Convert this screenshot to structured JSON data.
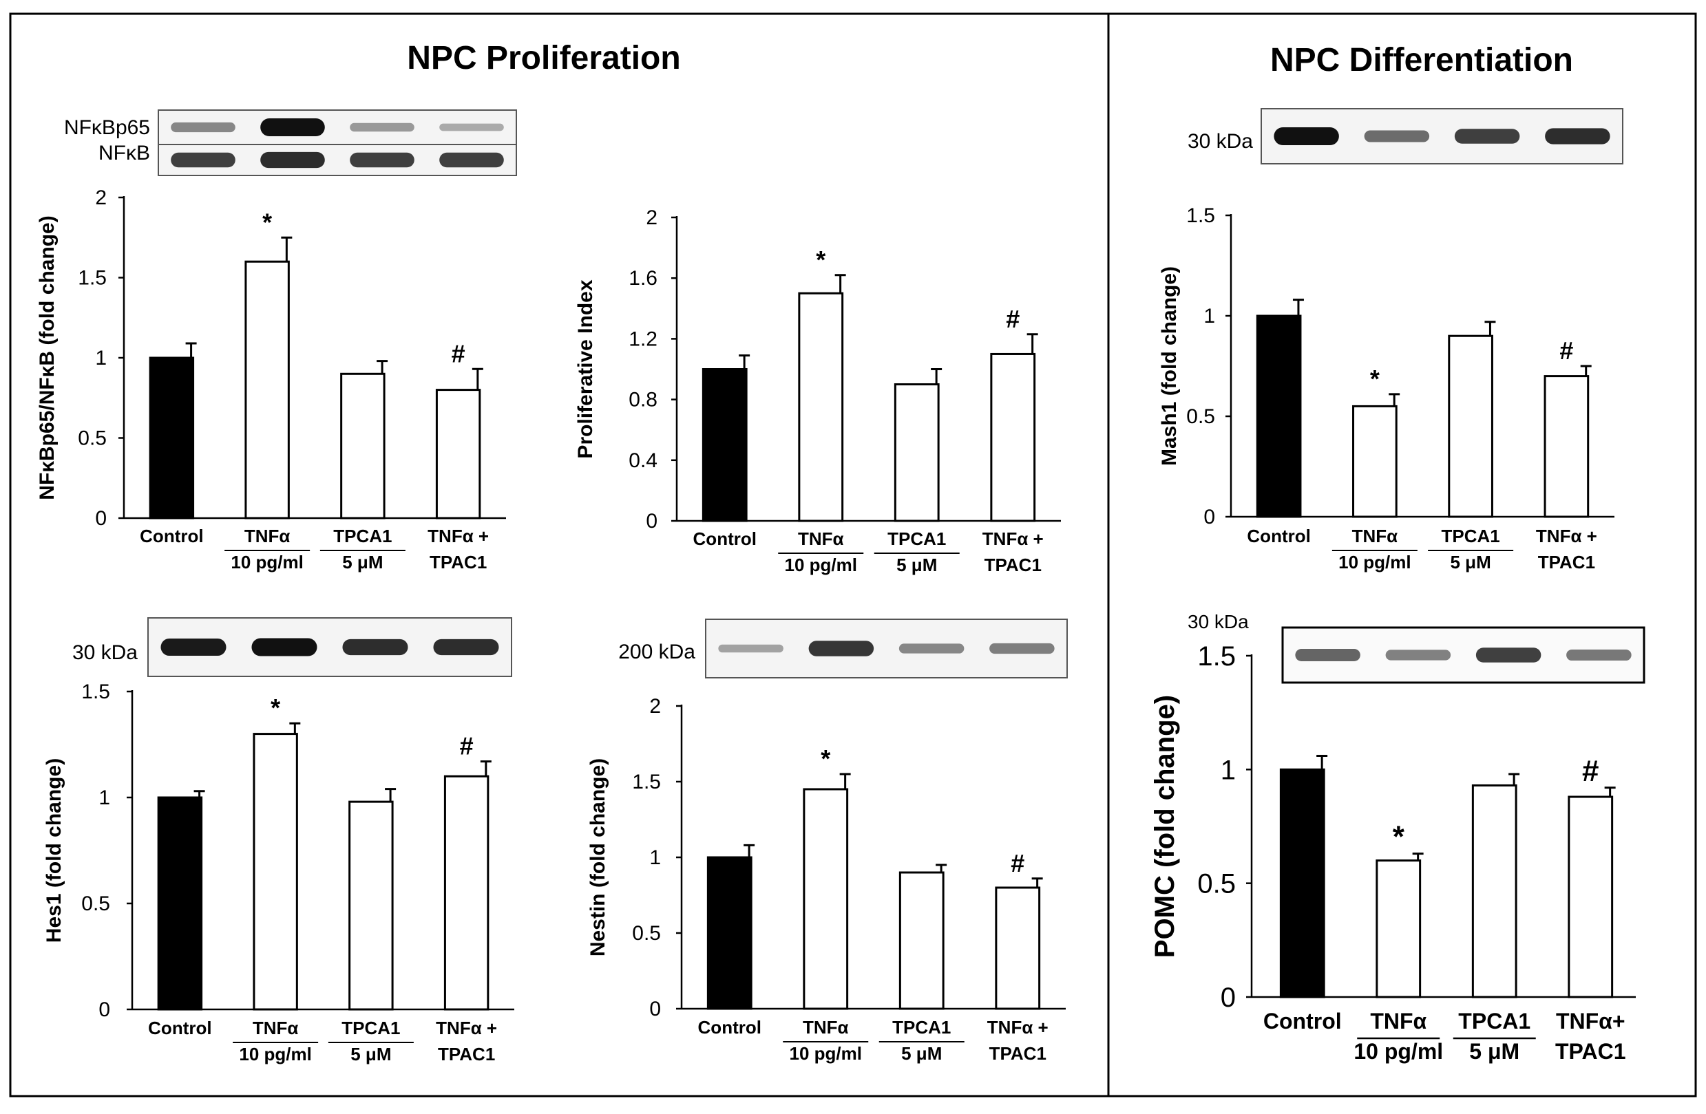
{
  "titles": {
    "proliferation": "NPC Proliferation",
    "differentiation": "NPC Differentiation"
  },
  "colors": {
    "control_bar": "#000000",
    "treatment_bar": "#ffffff"
  },
  "blots": [
    {
      "id": "nfkb",
      "labels": [
        "NFκBp65",
        "NFκB"
      ],
      "rows": [
        [
          0.35,
          1.0,
          0.25,
          0.15
        ],
        [
          0.75,
          0.85,
          0.75,
          0.75
        ]
      ]
    },
    {
      "id": "hes1",
      "labels": [
        "30 kDa"
      ],
      "rows": [
        [
          0.95,
          1.0,
          0.85,
          0.85
        ]
      ]
    },
    {
      "id": "nestin",
      "labels": [
        "200 kDa"
      ],
      "rows": [
        [
          0.2,
          0.8,
          0.35,
          0.4
        ]
      ]
    },
    {
      "id": "mash1",
      "labels": [
        "30 kDa"
      ],
      "rows": [
        [
          1.0,
          0.5,
          0.75,
          0.85
        ]
      ]
    },
    {
      "id": "pomc",
      "labels": [
        "30 kDa"
      ],
      "rows": [
        [
          0.55,
          0.4,
          0.75,
          0.45
        ]
      ]
    }
  ],
  "chart_data": [
    {
      "id": "nfkb",
      "type": "bar",
      "title": "",
      "ylabel": "NFκBp65/NFκB (fold change)",
      "xlabel": "",
      "ylim": [
        0,
        2
      ],
      "yticks": [
        "0",
        "0.5",
        "1",
        "1.5",
        "2"
      ],
      "ytick_values": [
        0,
        0.5,
        1,
        1.5,
        2
      ],
      "categories": [
        [
          "Control"
        ],
        [
          "TNFα",
          "10 pg/ml"
        ],
        [
          "TPCA1",
          "5 μM"
        ],
        [
          "TNFα +",
          "TPAC1"
        ]
      ],
      "values": [
        1.0,
        1.6,
        0.9,
        0.8
      ],
      "errors": [
        0.09,
        0.15,
        0.08,
        0.13
      ],
      "annotations": [
        "",
        "*",
        "",
        "#"
      ]
    },
    {
      "id": "prolif",
      "type": "bar",
      "title": "",
      "ylabel": "Proliferative Index",
      "xlabel": "",
      "ylim": [
        0,
        2
      ],
      "yticks": [
        "0",
        "0.4",
        "0.8",
        "1.2",
        "1.6",
        "2"
      ],
      "ytick_values": [
        0,
        0.4,
        0.8,
        1.2,
        1.6,
        2
      ],
      "categories": [
        [
          "Control"
        ],
        [
          "TNFα",
          "10 pg/ml"
        ],
        [
          "TPCA1",
          "5 μM"
        ],
        [
          "TNFα +",
          "TPAC1"
        ]
      ],
      "values": [
        1.0,
        1.5,
        0.9,
        1.1
      ],
      "errors": [
        0.09,
        0.12,
        0.1,
        0.13
      ],
      "annotations": [
        "",
        "*",
        "",
        "#"
      ]
    },
    {
      "id": "hes1",
      "type": "bar",
      "title": "",
      "ylabel": "Hes1 (fold change)",
      "xlabel": "",
      "ylim": [
        0,
        1.5
      ],
      "yticks": [
        "0",
        "0.5",
        "1",
        "1.5"
      ],
      "ytick_values": [
        0,
        0.5,
        1,
        1.5
      ],
      "categories": [
        [
          "Control"
        ],
        [
          "TNFα",
          "10 pg/ml"
        ],
        [
          "TPCA1",
          "5 μM"
        ],
        [
          "TNFα +",
          "TPAC1"
        ]
      ],
      "values": [
        1.0,
        1.3,
        0.98,
        1.1
      ],
      "errors": [
        0.03,
        0.05,
        0.06,
        0.07
      ],
      "annotations": [
        "",
        "*",
        "",
        "#"
      ]
    },
    {
      "id": "nestin",
      "type": "bar",
      "title": "",
      "ylabel": "Nestin (fold change)",
      "xlabel": "",
      "ylim": [
        0,
        2
      ],
      "yticks": [
        "0",
        "0.5",
        "1",
        "1.5",
        "2"
      ],
      "ytick_values": [
        0,
        0.5,
        1,
        1.5,
        2
      ],
      "categories": [
        [
          "Control"
        ],
        [
          "TNFα",
          "10 pg/ml"
        ],
        [
          "TPCA1",
          "5 μM"
        ],
        [
          "TNFα +",
          "TPAC1"
        ]
      ],
      "values": [
        1.0,
        1.45,
        0.9,
        0.8
      ],
      "errors": [
        0.08,
        0.1,
        0.05,
        0.06
      ],
      "annotations": [
        "",
        "*",
        "",
        "#"
      ]
    },
    {
      "id": "mash1",
      "type": "bar",
      "title": "",
      "ylabel": "Mash1 (fold change)",
      "xlabel": "",
      "ylim": [
        0,
        1.5
      ],
      "yticks": [
        "0",
        "0.5",
        "1",
        "1.5"
      ],
      "ytick_values": [
        0,
        0.5,
        1,
        1.5
      ],
      "categories": [
        [
          "Control"
        ],
        [
          "TNFα",
          "10 pg/ml"
        ],
        [
          "TPCA1",
          "5 μM"
        ],
        [
          "TNFα +",
          "TPAC1"
        ]
      ],
      "values": [
        1.0,
        0.55,
        0.9,
        0.7
      ],
      "errors": [
        0.08,
        0.06,
        0.07,
        0.05
      ],
      "annotations": [
        "",
        "*",
        "",
        "#"
      ]
    },
    {
      "id": "pomc",
      "type": "bar",
      "title": "",
      "ylabel": "POMC  (fold change)",
      "xlabel": "",
      "ylim": [
        0,
        1.5
      ],
      "yticks": [
        "0",
        "0.5",
        "1",
        "1.5"
      ],
      "ytick_values": [
        0,
        0.5,
        1,
        1.5
      ],
      "categories": [
        [
          "Control"
        ],
        [
          "TNFα",
          "10 pg/ml"
        ],
        [
          "TPCA1",
          "5 μM"
        ],
        [
          "TNFα+",
          "TPAC1"
        ]
      ],
      "values": [
        1.0,
        0.6,
        0.93,
        0.88
      ],
      "errors": [
        0.06,
        0.03,
        0.05,
        0.04
      ],
      "annotations": [
        "",
        "*",
        "",
        "#"
      ]
    }
  ]
}
